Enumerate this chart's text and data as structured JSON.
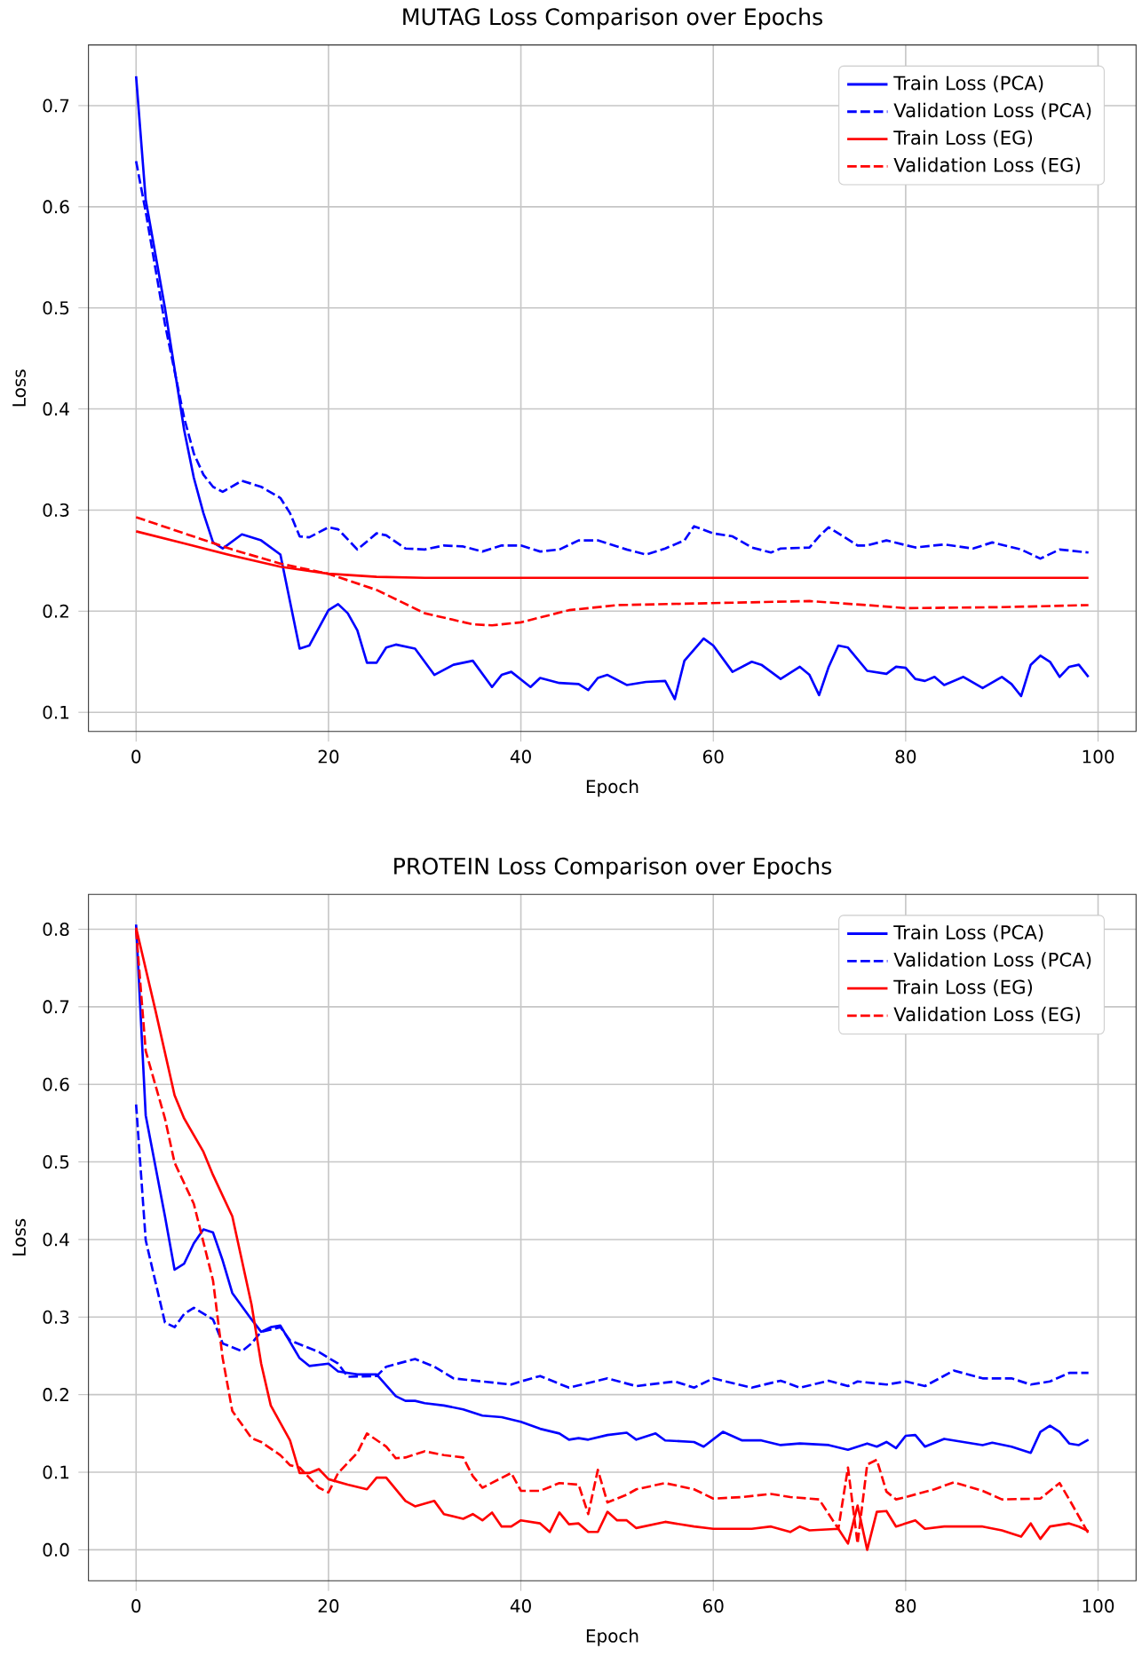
{
  "chart_data": [
    {
      "type": "line",
      "title": "MUTAG Loss Comparison over Epochs",
      "xlabel": "Epoch",
      "ylabel": "Loss",
      "xlim": [
        -4.95,
        103.95
      ],
      "ylim": [
        0.081,
        0.76
      ],
      "xticks": [
        0,
        20,
        40,
        60,
        80,
        100
      ],
      "yticks": [
        0.1,
        0.2,
        0.3,
        0.4,
        0.5,
        0.6,
        0.7
      ],
      "grid": true,
      "legend": "top right",
      "series": [
        {
          "name": "Train Loss (PCA)",
          "color": "#0000ff",
          "line_style": "solid",
          "x": [
            0,
            1,
            3,
            5,
            6,
            7,
            8,
            9,
            11,
            13,
            15,
            17,
            18,
            20,
            21,
            22,
            23,
            24,
            25,
            26,
            27,
            29,
            31,
            33,
            35,
            37,
            38,
            39,
            41,
            42,
            44,
            46,
            47,
            48,
            49,
            51,
            53,
            55,
            56,
            57,
            59,
            60,
            62,
            64,
            65,
            67,
            69,
            70,
            71,
            72,
            73,
            74,
            76,
            78,
            79,
            80,
            81,
            82,
            83,
            84,
            86,
            88,
            90,
            91,
            92,
            93,
            94,
            95,
            96,
            97,
            98,
            99
          ],
          "values": [
            0.729,
            0.607,
            0.5,
            0.379,
            0.332,
            0.297,
            0.268,
            0.262,
            0.276,
            0.27,
            0.256,
            0.163,
            0.166,
            0.201,
            0.207,
            0.198,
            0.181,
            0.149,
            0.149,
            0.164,
            0.167,
            0.163,
            0.137,
            0.147,
            0.151,
            0.125,
            0.137,
            0.14,
            0.125,
            0.134,
            0.129,
            0.128,
            0.122,
            0.134,
            0.137,
            0.127,
            0.13,
            0.131,
            0.113,
            0.151,
            0.173,
            0.166,
            0.14,
            0.15,
            0.147,
            0.133,
            0.145,
            0.137,
            0.117,
            0.145,
            0.166,
            0.164,
            0.141,
            0.138,
            0.145,
            0.144,
            0.133,
            0.131,
            0.135,
            0.127,
            0.135,
            0.124,
            0.135,
            0.128,
            0.116,
            0.147,
            0.156,
            0.15,
            0.135,
            0.145,
            0.147,
            0.135
          ]
        },
        {
          "name": "Validation Loss (PCA)",
          "color": "#0000ff",
          "line_style": "dashed",
          "x": [
            0,
            1,
            3,
            5,
            6,
            7,
            8,
            9,
            11,
            13,
            15,
            16,
            17,
            18,
            20,
            21,
            23,
            25,
            26,
            28,
            30,
            32,
            34,
            36,
            38,
            40,
            42,
            44,
            46,
            48,
            51,
            53,
            55,
            57,
            58,
            60,
            62,
            64,
            66,
            67,
            70,
            71,
            72,
            75,
            76,
            78,
            81,
            84,
            87,
            89,
            92,
            94,
            96,
            99
          ],
          "values": [
            0.645,
            0.595,
            0.484,
            0.391,
            0.356,
            0.335,
            0.323,
            0.318,
            0.329,
            0.323,
            0.312,
            0.297,
            0.274,
            0.273,
            0.283,
            0.281,
            0.261,
            0.277,
            0.275,
            0.262,
            0.261,
            0.265,
            0.264,
            0.259,
            0.265,
            0.265,
            0.259,
            0.261,
            0.27,
            0.27,
            0.261,
            0.256,
            0.262,
            0.27,
            0.284,
            0.277,
            0.274,
            0.263,
            0.258,
            0.262,
            0.263,
            0.274,
            0.283,
            0.265,
            0.265,
            0.27,
            0.263,
            0.266,
            0.262,
            0.268,
            0.261,
            0.252,
            0.261,
            0.258
          ]
        },
        {
          "name": "Train Loss (EG)",
          "color": "#ff0000",
          "line_style": "solid",
          "x": [
            0,
            5,
            10,
            15,
            20,
            25,
            30,
            40,
            60,
            80,
            99
          ],
          "values": [
            0.279,
            0.267,
            0.255,
            0.244,
            0.237,
            0.234,
            0.233,
            0.233,
            0.233,
            0.233,
            0.233
          ]
        },
        {
          "name": "Validation Loss (EG)",
          "color": "#ff0000",
          "line_style": "dashed",
          "x": [
            0,
            5,
            10,
            15,
            20,
            25,
            30,
            35,
            37,
            40,
            45,
            50,
            60,
            70,
            76,
            80,
            90,
            99
          ],
          "values": [
            0.293,
            0.277,
            0.261,
            0.247,
            0.237,
            0.221,
            0.198,
            0.187,
            0.186,
            0.189,
            0.201,
            0.206,
            0.208,
            0.21,
            0.206,
            0.203,
            0.204,
            0.206
          ]
        }
      ]
    },
    {
      "type": "line",
      "title": "PROTEIN Loss Comparison over Epochs",
      "xlabel": "Epoch",
      "ylabel": "Loss",
      "xlim": [
        -4.95,
        103.95
      ],
      "ylim": [
        -0.04,
        0.845
      ],
      "xticks": [
        0,
        20,
        40,
        60,
        80,
        100
      ],
      "yticks": [
        {
          "value": 0,
          "label": "0.0"
        },
        0.1,
        0.2,
        0.3,
        0.4,
        0.5,
        0.6,
        0.7,
        0.8
      ],
      "grid": true,
      "legend": "top right",
      "series": [
        {
          "name": "Train Loss (PCA)",
          "color": "#0000ff",
          "line_style": "solid",
          "x": [
            0,
            1,
            3,
            4,
            5,
            6,
            7,
            8,
            9,
            10,
            12,
            13,
            14,
            15,
            16,
            17,
            18,
            20,
            21,
            23,
            25,
            27,
            28,
            29,
            30,
            32,
            34,
            36,
            38,
            40,
            42,
            44,
            45,
            46,
            47,
            49,
            51,
            52,
            54,
            55,
            58,
            59,
            61,
            63,
            65,
            67,
            69,
            72,
            74,
            76,
            77,
            78,
            79,
            80,
            81,
            82,
            84,
            88,
            89,
            91,
            93,
            94,
            95,
            96,
            97,
            98,
            99
          ],
          "values": [
            0.806,
            0.56,
            0.43,
            0.361,
            0.369,
            0.395,
            0.413,
            0.409,
            0.373,
            0.331,
            0.297,
            0.281,
            0.287,
            0.289,
            0.268,
            0.247,
            0.237,
            0.24,
            0.23,
            0.226,
            0.226,
            0.198,
            0.192,
            0.192,
            0.189,
            0.186,
            0.181,
            0.173,
            0.171,
            0.165,
            0.156,
            0.15,
            0.142,
            0.144,
            0.142,
            0.148,
            0.151,
            0.142,
            0.15,
            0.141,
            0.139,
            0.133,
            0.152,
            0.141,
            0.141,
            0.135,
            0.137,
            0.135,
            0.129,
            0.137,
            0.133,
            0.139,
            0.131,
            0.147,
            0.148,
            0.133,
            0.143,
            0.135,
            0.138,
            0.133,
            0.125,
            0.152,
            0.16,
            0.152,
            0.137,
            0.135,
            0.142
          ]
        },
        {
          "name": "Validation Loss (PCA)",
          "color": "#0000ff",
          "line_style": "dashed",
          "x": [
            0,
            1,
            3,
            4,
            5,
            6,
            8,
            9,
            11,
            12,
            13,
            15,
            16,
            19,
            21,
            22,
            25,
            26,
            29,
            31,
            33,
            36,
            39,
            40,
            42,
            45,
            49,
            52,
            56,
            58,
            60,
            62,
            64,
            67,
            69,
            72,
            74,
            75,
            78,
            80,
            82,
            85,
            88,
            91,
            93,
            95,
            97,
            99
          ],
          "values": [
            0.574,
            0.399,
            0.293,
            0.287,
            0.304,
            0.312,
            0.297,
            0.266,
            0.256,
            0.266,
            0.281,
            0.287,
            0.27,
            0.255,
            0.24,
            0.223,
            0.224,
            0.236,
            0.246,
            0.236,
            0.221,
            0.217,
            0.213,
            0.217,
            0.224,
            0.209,
            0.221,
            0.211,
            0.217,
            0.209,
            0.221,
            0.215,
            0.209,
            0.218,
            0.209,
            0.218,
            0.211,
            0.217,
            0.213,
            0.217,
            0.211,
            0.231,
            0.221,
            0.221,
            0.213,
            0.217,
            0.228,
            0.228
          ]
        },
        {
          "name": "Train Loss (EG)",
          "color": "#ff0000",
          "line_style": "solid",
          "x": [
            0,
            2,
            4,
            5,
            7,
            8,
            10,
            12,
            13,
            14,
            16,
            17,
            18,
            19,
            20,
            22,
            24,
            25,
            26,
            28,
            29,
            31,
            32,
            34,
            35,
            36,
            37,
            38,
            39,
            40,
            42,
            43,
            44,
            45,
            46,
            47,
            48,
            49,
            50,
            51,
            52,
            55,
            58,
            60,
            64,
            66,
            68,
            69,
            70,
            73,
            74,
            75,
            76,
            77,
            78,
            79,
            81,
            82,
            84,
            88,
            90,
            92,
            93,
            94,
            95,
            97,
            98,
            99
          ],
          "values": [
            0.802,
            0.696,
            0.586,
            0.556,
            0.513,
            0.483,
            0.43,
            0.316,
            0.24,
            0.186,
            0.141,
            0.099,
            0.099,
            0.104,
            0.091,
            0.084,
            0.078,
            0.093,
            0.093,
            0.063,
            0.056,
            0.063,
            0.046,
            0.04,
            0.046,
            0.038,
            0.048,
            0.03,
            0.03,
            0.038,
            0.034,
            0.023,
            0.048,
            0.033,
            0.034,
            0.023,
            0.023,
            0.049,
            0.038,
            0.038,
            0.028,
            0.036,
            0.03,
            0.027,
            0.027,
            0.03,
            0.023,
            0.03,
            0.025,
            0.027,
            0.008,
            0.057,
            0.0,
            0.049,
            0.05,
            0.03,
            0.038,
            0.027,
            0.03,
            0.03,
            0.025,
            0.017,
            0.034,
            0.014,
            0.03,
            0.034,
            0.03,
            0.024
          ]
        },
        {
          "name": "Validation Loss (EG)",
          "color": "#ff0000",
          "line_style": "dashed",
          "x": [
            0,
            1,
            3,
            4,
            6,
            8,
            9,
            10,
            12,
            13,
            15,
            16,
            17,
            19,
            20,
            21,
            23,
            24,
            26,
            27,
            28,
            30,
            32,
            34,
            35,
            36,
            39,
            40,
            42,
            44,
            46,
            47,
            48,
            49,
            51,
            52,
            55,
            58,
            60,
            63,
            66,
            68,
            71,
            73,
            74,
            75,
            76,
            77,
            78,
            79,
            80,
            83,
            85,
            88,
            90,
            94,
            96,
            97,
            99
          ],
          "values": [
            0.799,
            0.643,
            0.556,
            0.499,
            0.446,
            0.347,
            0.247,
            0.179,
            0.144,
            0.139,
            0.122,
            0.109,
            0.106,
            0.08,
            0.074,
            0.099,
            0.125,
            0.15,
            0.133,
            0.118,
            0.119,
            0.127,
            0.122,
            0.119,
            0.095,
            0.08,
            0.099,
            0.076,
            0.076,
            0.086,
            0.084,
            0.046,
            0.103,
            0.061,
            0.071,
            0.078,
            0.086,
            0.078,
            0.066,
            0.068,
            0.072,
            0.068,
            0.065,
            0.027,
            0.106,
            0.008,
            0.11,
            0.116,
            0.075,
            0.065,
            0.068,
            0.078,
            0.087,
            0.076,
            0.065,
            0.066,
            0.086,
            0.065,
            0.021
          ]
        }
      ]
    }
  ]
}
